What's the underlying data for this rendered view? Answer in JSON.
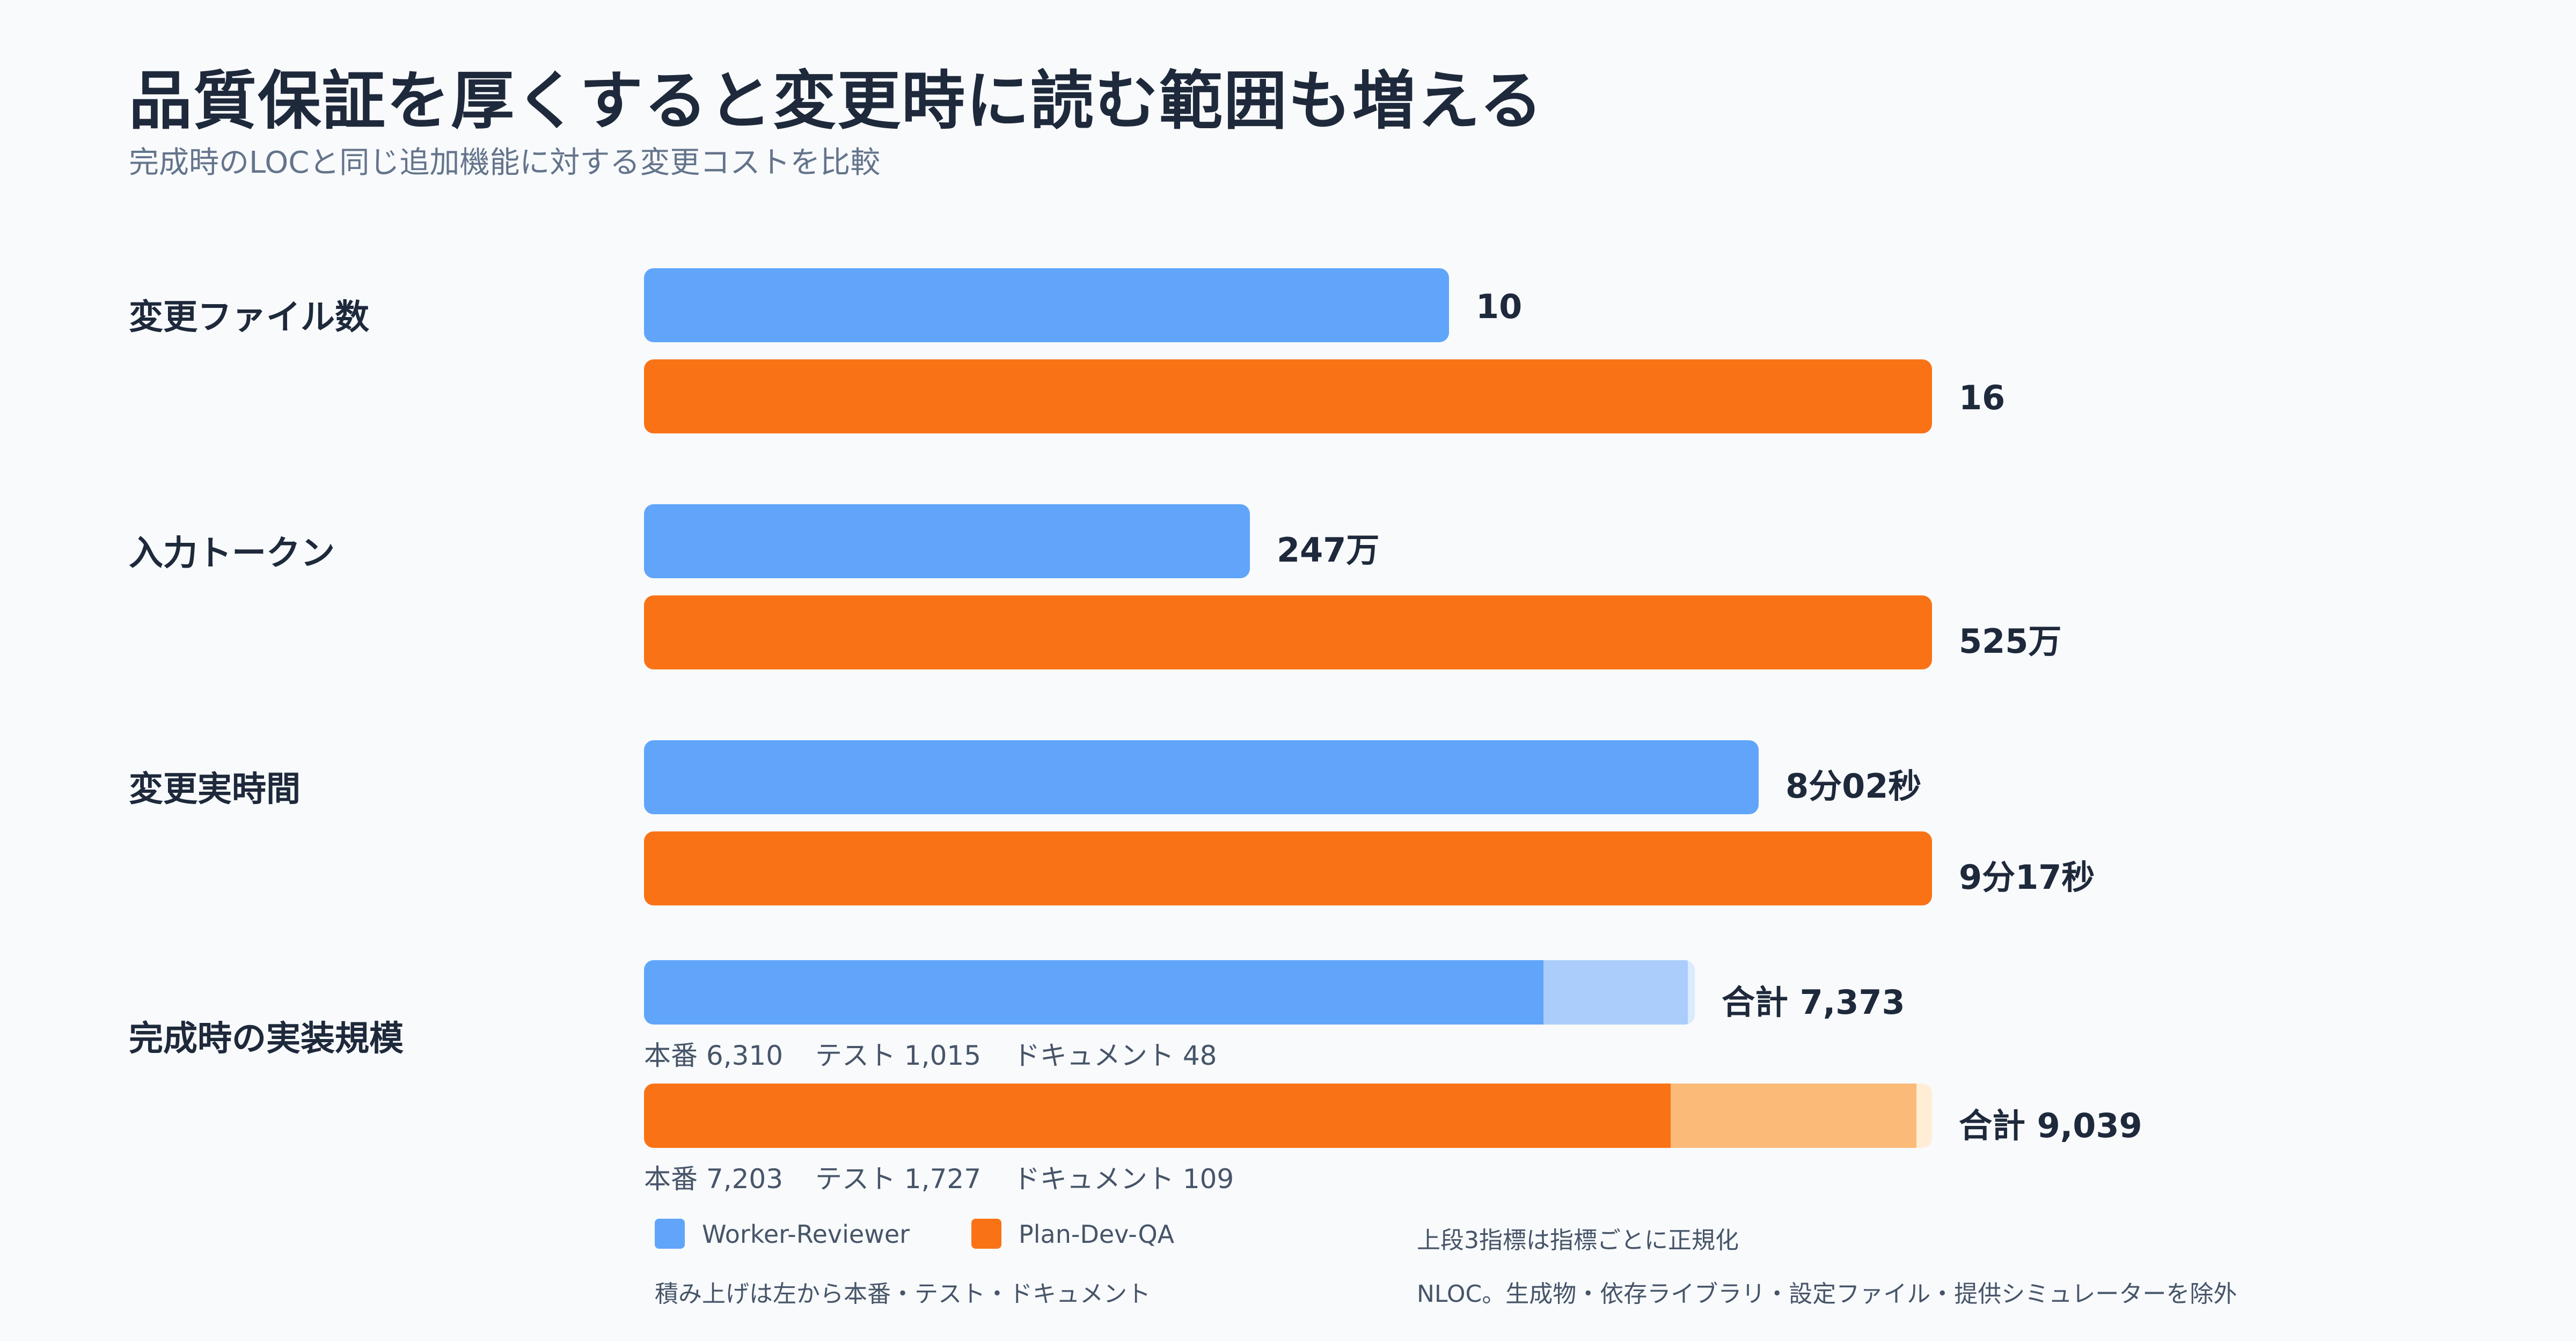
{
  "title": "品質保証を厚くすると変更時に読む範囲も増える",
  "subtitle": "完成時のLOCと同じ追加機能に対する変更コストを比較",
  "colors": {
    "worker_reviewer": "#60a5fa",
    "worker_reviewer_test": "#abcdfc",
    "worker_reviewer_doc": "#dbeafe",
    "plan_dev_qa": "#f97316",
    "plan_dev_qa_test": "#fbba78",
    "plan_dev_qa_doc": "#ffedd5"
  },
  "chart_data": {
    "type": "bar",
    "orientation": "horizontal",
    "normalization": "per-metric",
    "series": [
      {
        "name": "Worker-Reviewer"
      },
      {
        "name": "Plan-Dev-QA"
      }
    ],
    "metrics": [
      {
        "label": "変更ファイル数",
        "values": [
          10,
          16
        ],
        "display": [
          "10",
          "16"
        ]
      },
      {
        "label": "入力トークン",
        "values": [
          2470000,
          5250000
        ],
        "display": [
          "247万",
          "525万"
        ]
      },
      {
        "label": "変更実時間",
        "values": [
          482,
          557
        ],
        "unit": "seconds",
        "display": [
          "8分02秒",
          "9分17秒"
        ]
      }
    ],
    "loc": {
      "label": "完成時の実装規模",
      "stack_order": [
        "本番",
        "テスト",
        "ドキュメント"
      ],
      "series": [
        {
          "name": "Worker-Reviewer",
          "segments": [
            {
              "name": "本番",
              "value": 6310,
              "display": "6,310"
            },
            {
              "name": "テスト",
              "value": 1015,
              "display": "1,015"
            },
            {
              "name": "ドキュメント",
              "value": 48,
              "display": "48"
            }
          ],
          "total": 7373,
          "total_label": "合計 7,373"
        },
        {
          "name": "Plan-Dev-QA",
          "segments": [
            {
              "name": "本番",
              "value": 7203,
              "display": "7,203"
            },
            {
              "name": "テスト",
              "value": 1727,
              "display": "1,727"
            },
            {
              "name": "ドキュメント",
              "value": 109,
              "display": "109"
            }
          ],
          "total": 9039,
          "total_label": "合計 9,039"
        }
      ]
    },
    "legend": {
      "position": "bottom",
      "items": [
        "Worker-Reviewer",
        "Plan-Dev-QA"
      ]
    },
    "notes": [
      "上段3指標は指標ごとに正規化",
      "積み上げは左から本番・テスト・ドキュメント",
      "NLOC。生成物・依存ライブラリ・設定ファイル・提供シミュレーターを除外"
    ]
  }
}
